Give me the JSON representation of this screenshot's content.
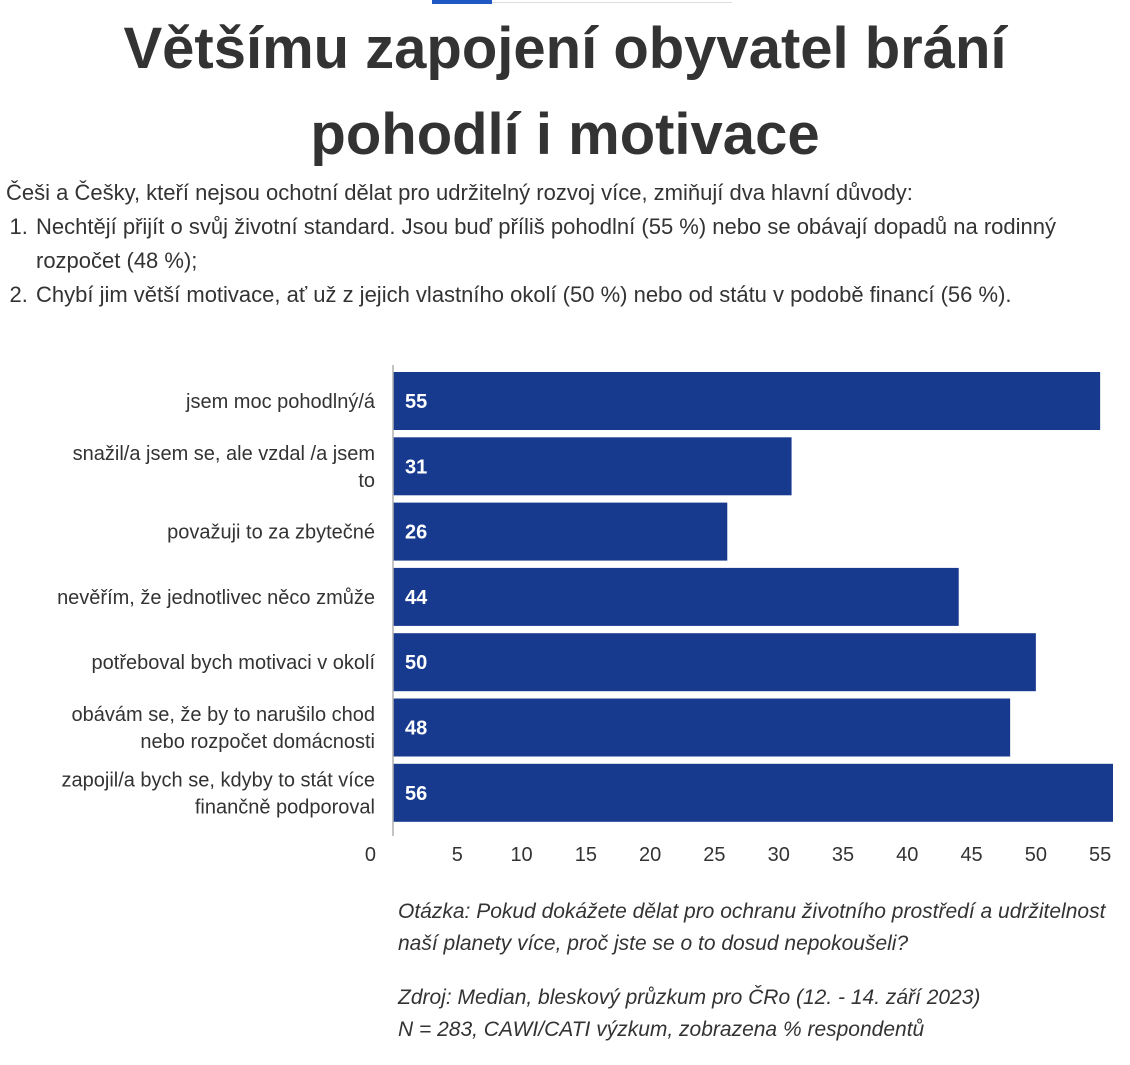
{
  "title_line1": "Většímu zapojení obyvatel brání",
  "title_line2": "pohodlí i motivace",
  "intro": {
    "lead": "Češi a Češky, kteří nejsou ochotní dělat pro udržitelný rozvoj více, zmiňují dva hlavní důvody:",
    "items": [
      "Nechtějí přijít o svůj životní standard. Jsou buď příliš pohodlní (55 %) nebo se obávají dopadů na rodinný rozpočet (48 %);",
      "Chybí jim větší motivace, ať už z jejich vlastního okolí (50 %) nebo od státu v podobě financí (56 %)."
    ]
  },
  "footer": {
    "question": "Otázka: Pokud dokážete dělat pro ochranu životního prostředí a udržitelnost naší planety více, proč jste se o to dosud nepokoušeli?",
    "source": "Zdroj: Median, bleskový průzkum pro ČRo (12. - 14. září 2023)",
    "sample": "N = 283, CAWI/CATI výzkum, zobrazena % respondentů"
  },
  "colors": {
    "bar": "#173a8f",
    "label_value": "#ffffff",
    "axis": "#b0b0b0",
    "text": "#333333",
    "accent": "#1f57c3"
  },
  "chart_data": {
    "type": "bar",
    "orientation": "horizontal",
    "categories": [
      [
        "jsem moc pohodlný/á"
      ],
      [
        "snažil/a jsem se, ale vzdal /a jsem",
        "to"
      ],
      [
        "považuji to za zbytečné"
      ],
      [
        "nevěřím, že jednotlivec něco zmůže"
      ],
      [
        "potřeboval bych motivaci v okolí"
      ],
      [
        "obávám se, že by to narušilo chod",
        "nebo rozpočet domácnosti"
      ],
      [
        "zapojil/a bych se, kdyby to stát více",
        "finančně podporoval"
      ]
    ],
    "values": [
      55,
      31,
      26,
      44,
      50,
      48,
      56
    ],
    "value_labels": [
      "55",
      "31",
      "26",
      "44",
      "50",
      "48",
      "56"
    ],
    "xlim": [
      0,
      56
    ],
    "ticks": [
      0,
      5,
      10,
      15,
      20,
      25,
      30,
      35,
      40,
      45,
      50,
      55
    ],
    "tick_labels": [
      "0",
      "5",
      "10",
      "15",
      "20",
      "25",
      "30",
      "35",
      "40",
      "45",
      "50",
      "55"
    ],
    "grid": false,
    "legend": "none"
  }
}
